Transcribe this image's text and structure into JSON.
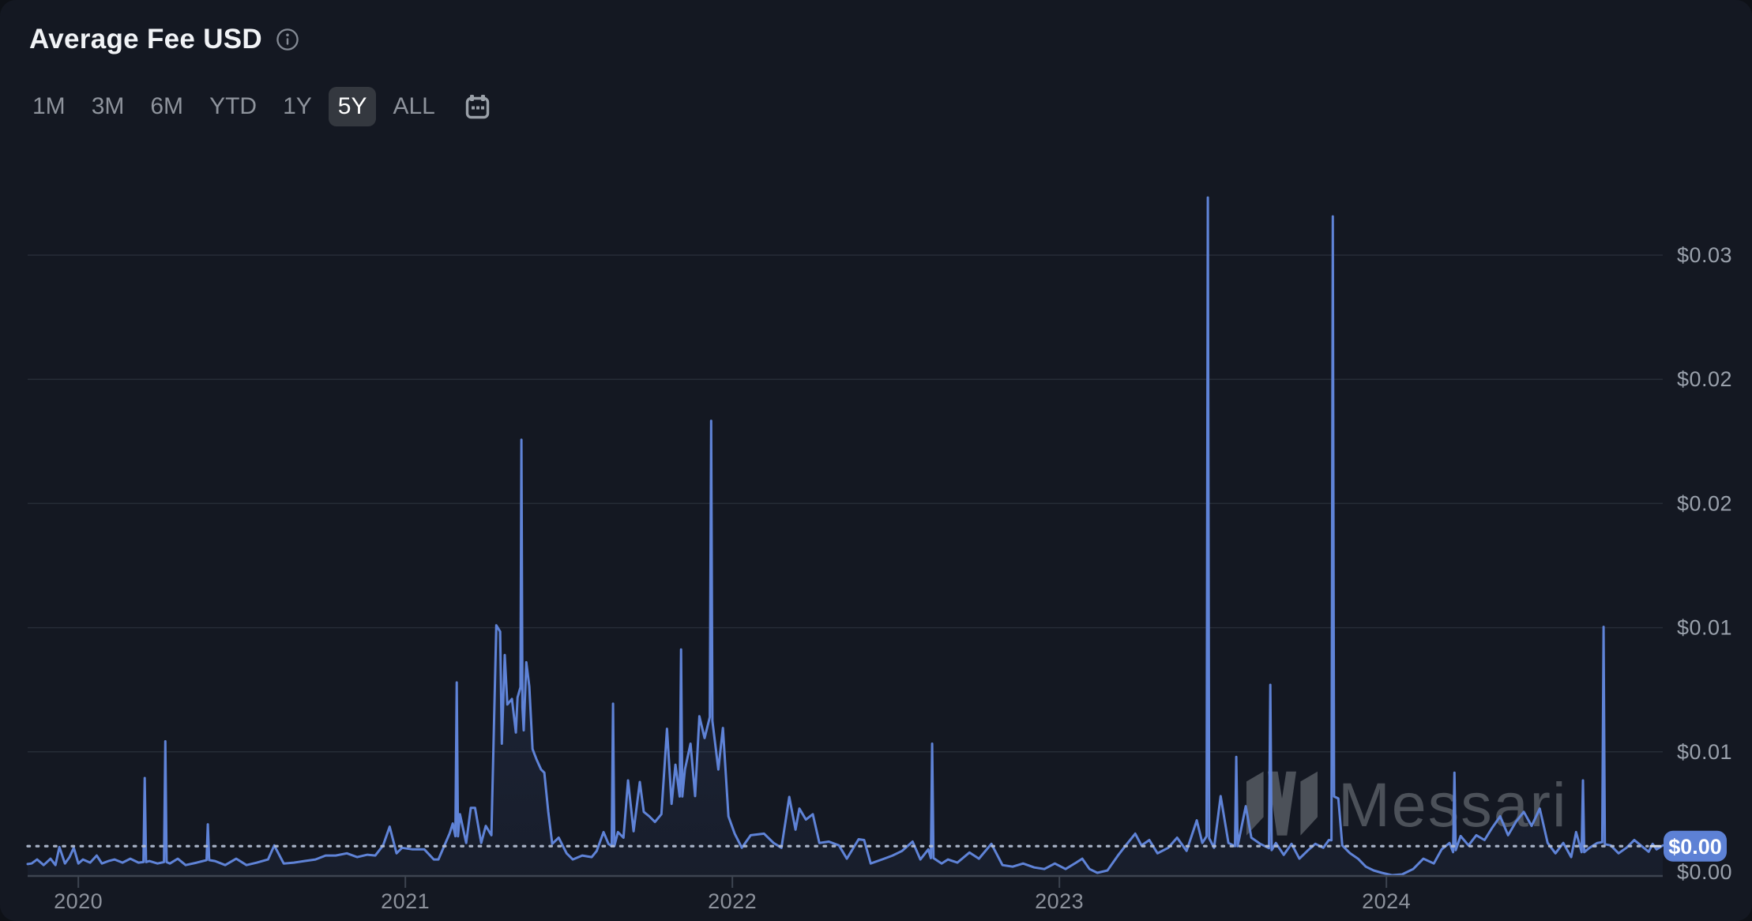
{
  "header": {
    "title": "Average Fee USD",
    "info_icon": "info-icon"
  },
  "toolbar": {
    "ranges": [
      {
        "label": "1M",
        "active": false
      },
      {
        "label": "3M",
        "active": false
      },
      {
        "label": "6M",
        "active": false
      },
      {
        "label": "YTD",
        "active": false
      },
      {
        "label": "1Y",
        "active": false
      },
      {
        "label": "5Y",
        "active": true
      },
      {
        "label": "ALL",
        "active": false
      }
    ],
    "calendar_icon": "calendar-icon"
  },
  "watermark": {
    "text": "Messari",
    "logo": "messari-logo"
  },
  "colors": {
    "background": "#141822",
    "line": "#5f83d7",
    "area": "rgba(95,131,215,0.16)",
    "badge": "#5d81d5",
    "grid": "#262c37",
    "axis_label": "#9aa1ac",
    "active_chip_bg": "#34383f",
    "title": "#f1f3f6",
    "watermark": "#5c6169"
  },
  "chart_data": {
    "type": "area",
    "title": "Average Fee USD",
    "xlabel": "",
    "ylabel": "Average Fee USD",
    "x_unit": "decimal_year",
    "x_range": [
      2019.845,
      2024.845
    ],
    "ylim": [
      0,
      0.0375
    ],
    "grid": "horizontal",
    "legend": "none",
    "x_ticks": [
      {
        "value": 2020,
        "label": "2020"
      },
      {
        "value": 2021,
        "label": "2021"
      },
      {
        "value": 2022,
        "label": "2022"
      },
      {
        "value": 2023,
        "label": "2023"
      },
      {
        "value": 2024,
        "label": "2024"
      }
    ],
    "y_ticks": [
      {
        "value": 0.03125,
        "label": "$0.03"
      },
      {
        "value": 0.025,
        "label": "$0.02"
      },
      {
        "value": 0.01875,
        "label": "$0.02"
      },
      {
        "value": 0.0125,
        "label": "$0.01"
      },
      {
        "value": 0.00625,
        "label": "$0.01"
      }
    ],
    "y_floor_label": {
      "value": 0,
      "label": "$0.00"
    },
    "current": {
      "value": 0.0015,
      "label": "$0.00"
    },
    "series": [
      {
        "name": "Average Fee USD",
        "points": [
          [
            2019.845,
            0.0006
          ],
          [
            2019.857,
            0.00063
          ],
          [
            2019.874,
            0.00083
          ],
          [
            2019.894,
            0.00055
          ],
          [
            2019.915,
            0.00087
          ],
          [
            2019.93,
            0.00055
          ],
          [
            2019.942,
            0.00146
          ],
          [
            2019.959,
            0.00063
          ],
          [
            2019.973,
            0.00095
          ],
          [
            2019.986,
            0.00142
          ],
          [
            2020.0,
            0.00063
          ],
          [
            2020.014,
            0.00083
          ],
          [
            2020.036,
            0.00067
          ],
          [
            2020.056,
            0.00103
          ],
          [
            2020.072,
            0.00063
          ],
          [
            2020.092,
            0.00075
          ],
          [
            2020.111,
            0.00083
          ],
          [
            2020.135,
            0.00067
          ],
          [
            2020.159,
            0.00087
          ],
          [
            2020.184,
            0.00067
          ],
          [
            2020.199,
            0.0007
          ],
          [
            2020.203,
            0.00493
          ],
          [
            2020.207,
            0.0007
          ],
          [
            2020.217,
            0.00075
          ],
          [
            2020.242,
            0.00063
          ],
          [
            2020.262,
            0.0007
          ],
          [
            2020.266,
            0.00678
          ],
          [
            2020.27,
            0.0007
          ],
          [
            2020.28,
            0.00063
          ],
          [
            2020.304,
            0.00087
          ],
          [
            2020.328,
            0.00055
          ],
          [
            2020.362,
            0.00067
          ],
          [
            2020.392,
            0.0008
          ],
          [
            2020.396,
            0.0026
          ],
          [
            2020.4,
            0.0008
          ],
          [
            2020.418,
            0.00075
          ],
          [
            2020.449,
            0.00055
          ],
          [
            2020.483,
            0.00087
          ],
          [
            2020.514,
            0.00055
          ],
          [
            2020.546,
            0.00067
          ],
          [
            2020.58,
            0.00083
          ],
          [
            2020.599,
            0.00154
          ],
          [
            2020.628,
            0.00063
          ],
          [
            2020.659,
            0.00067
          ],
          [
            2020.691,
            0.00075
          ],
          [
            2020.725,
            0.00083
          ],
          [
            2020.756,
            0.00103
          ],
          [
            2020.787,
            0.00103
          ],
          [
            2020.821,
            0.00114
          ],
          [
            2020.853,
            0.00095
          ],
          [
            2020.884,
            0.00107
          ],
          [
            2020.908,
            0.00103
          ],
          [
            2020.932,
            0.00154
          ],
          [
            2020.952,
            0.00248
          ],
          [
            2020.973,
            0.00114
          ],
          [
            2020.99,
            0.00142
          ],
          [
            2021.022,
            0.00134
          ],
          [
            2021.058,
            0.00134
          ],
          [
            2021.087,
            0.00083
          ],
          [
            2021.101,
            0.00083
          ],
          [
            2021.135,
            0.00213
          ],
          [
            2021.145,
            0.00264
          ],
          [
            2021.153,
            0.002
          ],
          [
            2021.157,
            0.00974
          ],
          [
            2021.161,
            0.002
          ],
          [
            2021.167,
            0.00311
          ],
          [
            2021.186,
            0.00166
          ],
          [
            2021.2,
            0.00343
          ],
          [
            2021.213,
            0.00343
          ],
          [
            2021.232,
            0.00166
          ],
          [
            2021.246,
            0.00252
          ],
          [
            2021.263,
            0.00205
          ],
          [
            2021.278,
            0.01262
          ],
          [
            2021.29,
            0.0123
          ],
          [
            2021.295,
            0.00666
          ],
          [
            2021.304,
            0.01112
          ],
          [
            2021.312,
            0.00863
          ],
          [
            2021.326,
            0.00891
          ],
          [
            2021.338,
            0.00722
          ],
          [
            2021.343,
            0.00899
          ],
          [
            2021.352,
            0.0095
          ],
          [
            2021.355,
            0.02196
          ],
          [
            2021.358,
            0.0085
          ],
          [
            2021.362,
            0.00733
          ],
          [
            2021.37,
            0.01076
          ],
          [
            2021.379,
            0.00954
          ],
          [
            2021.389,
            0.00639
          ],
          [
            2021.401,
            0.00587
          ],
          [
            2021.415,
            0.00536
          ],
          [
            2021.425,
            0.0052
          ],
          [
            2021.437,
            0.00323
          ],
          [
            2021.449,
            0.00162
          ],
          [
            2021.469,
            0.00193
          ],
          [
            2021.493,
            0.00114
          ],
          [
            2021.512,
            0.00083
          ],
          [
            2021.541,
            0.00103
          ],
          [
            2021.57,
            0.00095
          ],
          [
            2021.585,
            0.00126
          ],
          [
            2021.606,
            0.00221
          ],
          [
            2021.621,
            0.00162
          ],
          [
            2021.631,
            0.0015
          ],
          [
            2021.635,
            0.00867
          ],
          [
            2021.639,
            0.0015
          ],
          [
            2021.65,
            0.00221
          ],
          [
            2021.667,
            0.00193
          ],
          [
            2021.681,
            0.00481
          ],
          [
            2021.698,
            0.00225
          ],
          [
            2021.717,
            0.00473
          ],
          [
            2021.729,
            0.00323
          ],
          [
            2021.746,
            0.003
          ],
          [
            2021.763,
            0.00272
          ],
          [
            2021.783,
            0.00311
          ],
          [
            2021.8,
            0.00741
          ],
          [
            2021.814,
            0.00363
          ],
          [
            2021.826,
            0.0056
          ],
          [
            2021.839,
            0.004
          ],
          [
            2021.843,
            0.0114
          ],
          [
            2021.847,
            0.004
          ],
          [
            2021.855,
            0.00536
          ],
          [
            2021.872,
            0.00666
          ],
          [
            2021.886,
            0.00402
          ],
          [
            2021.899,
            0.00804
          ],
          [
            2021.915,
            0.00694
          ],
          [
            2021.931,
            0.008
          ],
          [
            2021.935,
            0.02291
          ],
          [
            2021.939,
            0.0078
          ],
          [
            2021.957,
            0.00536
          ],
          [
            2021.971,
            0.00745
          ],
          [
            2021.988,
            0.003
          ],
          [
            2022.007,
            0.00213
          ],
          [
            2022.029,
            0.00142
          ],
          [
            2022.056,
            0.00205
          ],
          [
            2022.097,
            0.00213
          ],
          [
            2022.126,
            0.00166
          ],
          [
            2022.15,
            0.00142
          ],
          [
            2022.174,
            0.00398
          ],
          [
            2022.193,
            0.00233
          ],
          [
            2022.205,
            0.00339
          ],
          [
            2022.225,
            0.00284
          ],
          [
            2022.246,
            0.00311
          ],
          [
            2022.266,
            0.00166
          ],
          [
            2022.295,
            0.00173
          ],
          [
            2022.326,
            0.00154
          ],
          [
            2022.35,
            0.00087
          ],
          [
            2022.386,
            0.00185
          ],
          [
            2022.403,
            0.00181
          ],
          [
            2022.423,
            0.00063
          ],
          [
            2022.464,
            0.00087
          ],
          [
            2022.49,
            0.00103
          ],
          [
            2022.519,
            0.00126
          ],
          [
            2022.551,
            0.00173
          ],
          [
            2022.575,
            0.00083
          ],
          [
            2022.599,
            0.00134
          ],
          [
            2022.607,
            0.0009
          ],
          [
            2022.611,
            0.00666
          ],
          [
            2022.615,
            0.0009
          ],
          [
            2022.64,
            0.00063
          ],
          [
            2022.659,
            0.00083
          ],
          [
            2022.688,
            0.00067
          ],
          [
            2022.725,
            0.00118
          ],
          [
            2022.754,
            0.00087
          ],
          [
            2022.792,
            0.00162
          ],
          [
            2022.826,
            0.00055
          ],
          [
            2022.857,
            0.00047
          ],
          [
            2022.889,
            0.00063
          ],
          [
            2022.923,
            0.00043
          ],
          [
            2022.954,
            0.00035
          ],
          [
            2022.986,
            0.00063
          ],
          [
            2023.019,
            0.00035
          ],
          [
            2023.051,
            0.00067
          ],
          [
            2023.07,
            0.00087
          ],
          [
            2023.092,
            0.00035
          ],
          [
            2023.116,
            0.00016
          ],
          [
            2023.147,
            0.00028
          ],
          [
            2023.179,
            0.00103
          ],
          [
            2023.203,
            0.00154
          ],
          [
            2023.232,
            0.00213
          ],
          [
            2023.251,
            0.00154
          ],
          [
            2023.275,
            0.00181
          ],
          [
            2023.3,
            0.00114
          ],
          [
            2023.333,
            0.00142
          ],
          [
            2023.36,
            0.00193
          ],
          [
            2023.389,
            0.00126
          ],
          [
            2023.42,
            0.0028
          ],
          [
            2023.437,
            0.00166
          ],
          [
            2023.45,
            0.002
          ],
          [
            2023.454,
            0.03415
          ],
          [
            2023.458,
            0.0019
          ],
          [
            2023.473,
            0.00142
          ],
          [
            2023.493,
            0.00402
          ],
          [
            2023.517,
            0.00166
          ],
          [
            2023.537,
            0.0015
          ],
          [
            2023.541,
            0.00599
          ],
          [
            2023.545,
            0.0015
          ],
          [
            2023.57,
            0.00351
          ],
          [
            2023.587,
            0.00193
          ],
          [
            2023.614,
            0.00162
          ],
          [
            2023.641,
            0.0014
          ],
          [
            2023.645,
            0.00962
          ],
          [
            2023.649,
            0.0013
          ],
          [
            2023.662,
            0.00166
          ],
          [
            2023.686,
            0.00106
          ],
          [
            2023.71,
            0.00162
          ],
          [
            2023.734,
            0.00087
          ],
          [
            2023.758,
            0.00126
          ],
          [
            2023.783,
            0.00162
          ],
          [
            2023.807,
            0.00142
          ],
          [
            2023.824,
            0.00181
          ],
          [
            2023.832,
            0.0018
          ],
          [
            2023.836,
            0.0332
          ],
          [
            2023.84,
            0.004
          ],
          [
            2023.853,
            0.0039
          ],
          [
            2023.865,
            0.00154
          ],
          [
            2023.889,
            0.00114
          ],
          [
            2023.913,
            0.00087
          ],
          [
            2023.937,
            0.00047
          ],
          [
            2023.961,
            0.00028
          ],
          [
            2023.986,
            0.00016
          ],
          [
            2024.017,
            4e-05
          ],
          [
            2024.048,
            8e-05
          ],
          [
            2024.082,
            0.00035
          ],
          [
            2024.113,
            0.00087
          ],
          [
            2024.145,
            0.00063
          ],
          [
            2024.169,
            0.00134
          ],
          [
            2024.193,
            0.00166
          ],
          [
            2024.204,
            0.0012
          ],
          [
            2024.208,
            0.0052
          ],
          [
            2024.212,
            0.0013
          ],
          [
            2024.227,
            0.00201
          ],
          [
            2024.251,
            0.00154
          ],
          [
            2024.275,
            0.00205
          ],
          [
            2024.3,
            0.00181
          ],
          [
            2024.324,
            0.00244
          ],
          [
            2024.348,
            0.003
          ],
          [
            2024.372,
            0.00205
          ],
          [
            2024.396,
            0.00272
          ],
          [
            2024.42,
            0.00323
          ],
          [
            2024.444,
            0.00252
          ],
          [
            2024.469,
            0.00339
          ],
          [
            2024.493,
            0.00166
          ],
          [
            2024.517,
            0.00114
          ],
          [
            2024.541,
            0.00166
          ],
          [
            2024.565,
            0.00095
          ],
          [
            2024.58,
            0.00221
          ],
          [
            2024.597,
            0.0012
          ],
          [
            2024.601,
            0.00481
          ],
          [
            2024.605,
            0.0012
          ],
          [
            2024.621,
            0.00142
          ],
          [
            2024.645,
            0.00166
          ],
          [
            2024.66,
            0.0017
          ],
          [
            2024.664,
            0.01254
          ],
          [
            2024.668,
            0.0016
          ],
          [
            2024.686,
            0.00154
          ],
          [
            2024.71,
            0.00114
          ],
          [
            2024.734,
            0.00142
          ],
          [
            2024.758,
            0.00181
          ],
          [
            2024.778,
            0.00154
          ],
          [
            2024.802,
            0.00122
          ],
          [
            2024.814,
            0.00162
          ],
          [
            2024.826,
            0.00134
          ],
          [
            2024.838,
            0.00146
          ],
          [
            2024.845,
            0.00154
          ]
        ]
      }
    ]
  }
}
